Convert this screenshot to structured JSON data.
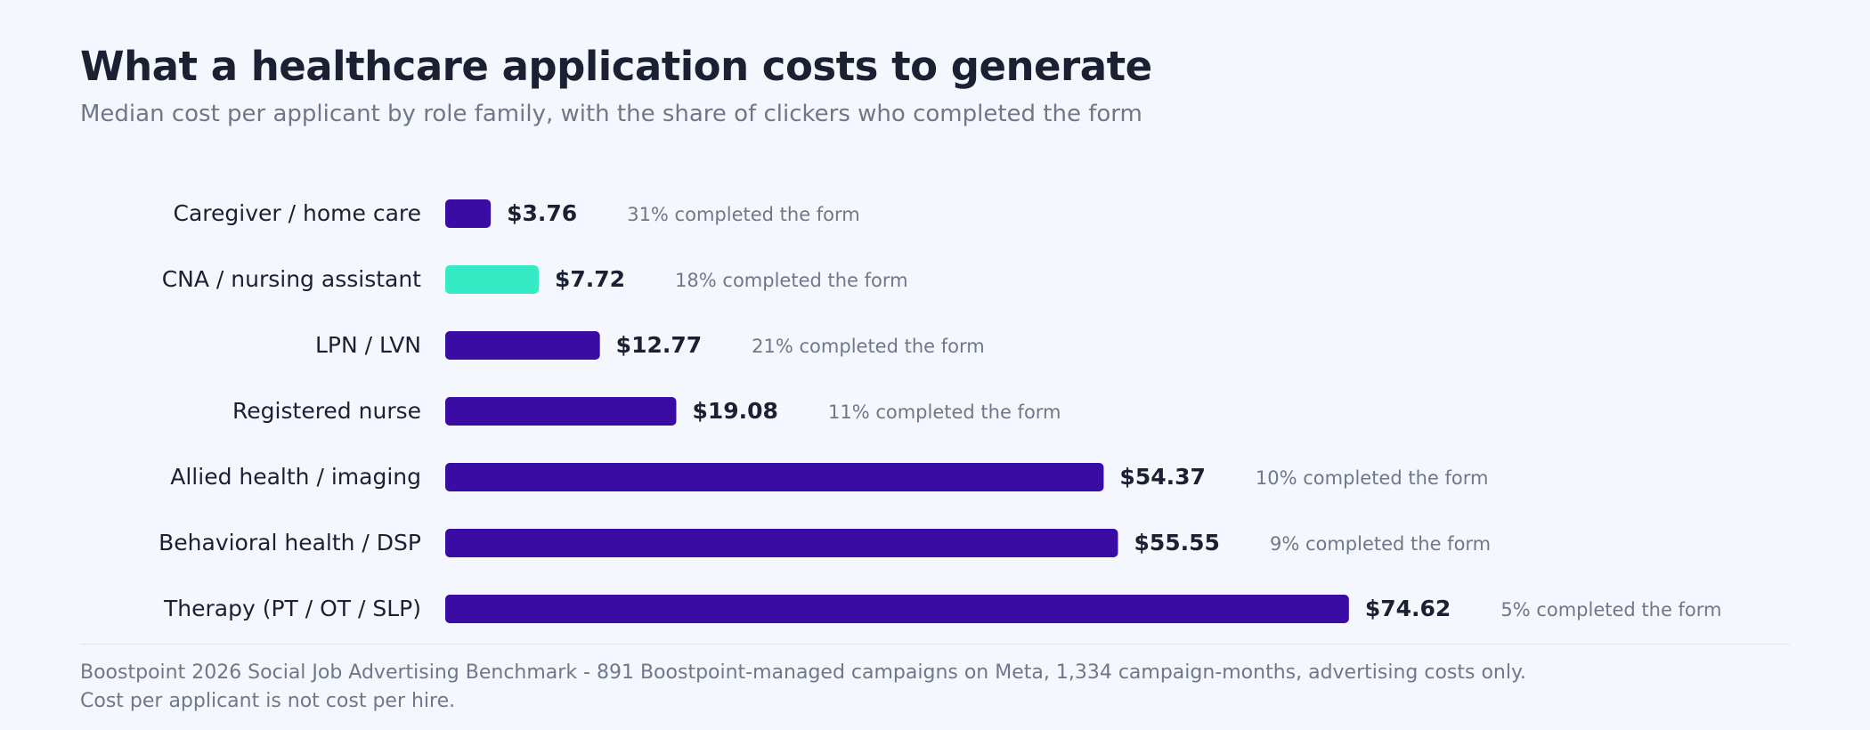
{
  "colors": {
    "accent": "#3a0ca3",
    "highlight": "#34ebc6",
    "text": "#1c2033",
    "muted": "#707789"
  },
  "chart_data": {
    "type": "bar",
    "orientation": "horizontal",
    "title": "What a healthcare application costs to generate",
    "subtitle": "Median cost per applicant by role family, with the share of clickers who completed the form",
    "categories": [
      "Caregiver / home care",
      "CNA / nursing assistant",
      "LPN / LVN",
      "Registered nurse",
      "Allied health / imaging",
      "Behavioral health / DSP",
      "Therapy (PT / OT / SLP)"
    ],
    "values": [
      3.76,
      7.72,
      12.77,
      19.08,
      54.37,
      55.55,
      74.62
    ],
    "value_labels": [
      "$3.76",
      "$7.72",
      "$12.77",
      "$19.08",
      "$54.37",
      "$55.55",
      "$74.62"
    ],
    "completion_labels": [
      "31% completed the form",
      "18% completed the form",
      "21% completed the form",
      "11% completed the form",
      "10% completed the form",
      "9% completed the form",
      "5% completed the form"
    ],
    "highlighted_category": "CNA / nursing assistant",
    "xlim": [
      0,
      75
    ],
    "grid": false,
    "legend": "none"
  },
  "footnote": {
    "line1": "Boostpoint 2026 Social Job Advertising Benchmark - 891 Boostpoint-managed campaigns on Meta, 1,334 campaign-months, advertising costs only.",
    "line2": "Cost per applicant is not cost per hire."
  }
}
